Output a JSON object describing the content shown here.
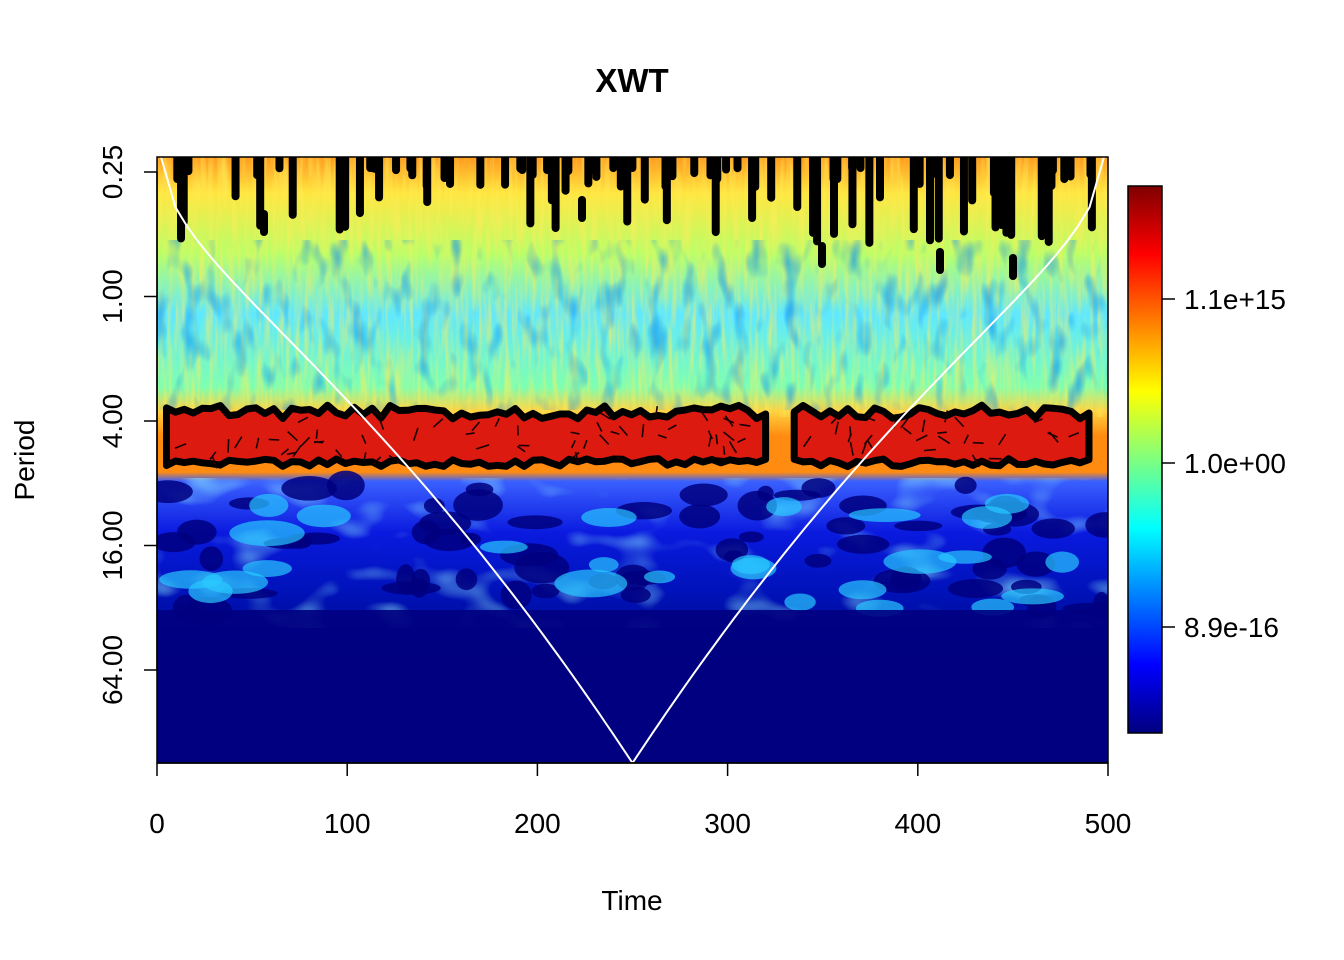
{
  "chart_data": {
    "type": "heatmap",
    "title": "XWT",
    "xlabel": "Time",
    "ylabel": "Period",
    "xlim": [
      0,
      500
    ],
    "ylim_log2": [
      0.25,
      128
    ],
    "y_scale": "log2 (reversed: small periods on top)",
    "x_ticks": [
      0,
      100,
      200,
      300,
      400,
      500
    ],
    "x_tick_labels": [
      "0",
      "100",
      "200",
      "300",
      "400",
      "500"
    ],
    "y_ticks": [
      0.25,
      1,
      4,
      16,
      64
    ],
    "y_tick_labels": [
      "0.25",
      "1.00",
      "4.00",
      "16.00",
      "64.00"
    ],
    "colorbar": {
      "palette": "jet",
      "ticks": [
        "1.1e+15",
        "1.0e+00",
        "8.9e-16"
      ],
      "colors": [
        "#00007f",
        "#0000ff",
        "#007fff",
        "#00ffff",
        "#7fff7f",
        "#ffff00",
        "#ff7f00",
        "#ff0000",
        "#7f0000"
      ]
    },
    "significant_band": {
      "period_range": [
        3.5,
        6.5
      ],
      "segments": [
        [
          5,
          320
        ],
        [
          335,
          490
        ]
      ],
      "color": "#dd1a10"
    },
    "cone_of_influence": {
      "shaded": true,
      "apex_time": 250
    }
  }
}
